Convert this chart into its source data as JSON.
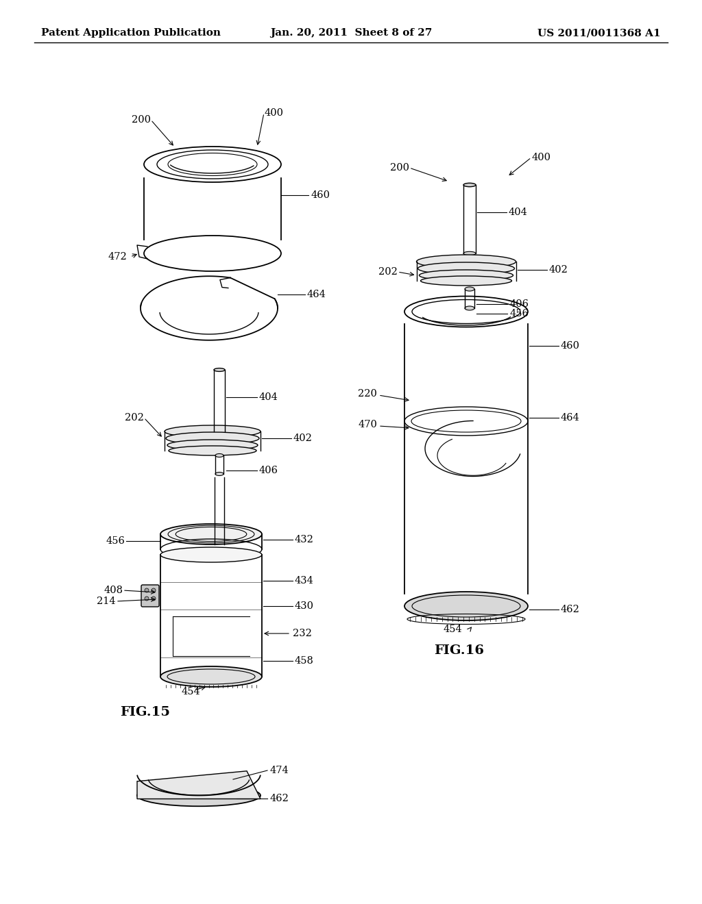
{
  "background_color": "#ffffff",
  "header_left": "Patent Application Publication",
  "header_center": "Jan. 20, 2011  Sheet 8 of 27",
  "header_right": "US 2011/0011368 A1",
  "fig15_label": "FIG.15",
  "fig16_label": "FIG.16",
  "header_font_size": 11,
  "ref_font_size": 10.5
}
